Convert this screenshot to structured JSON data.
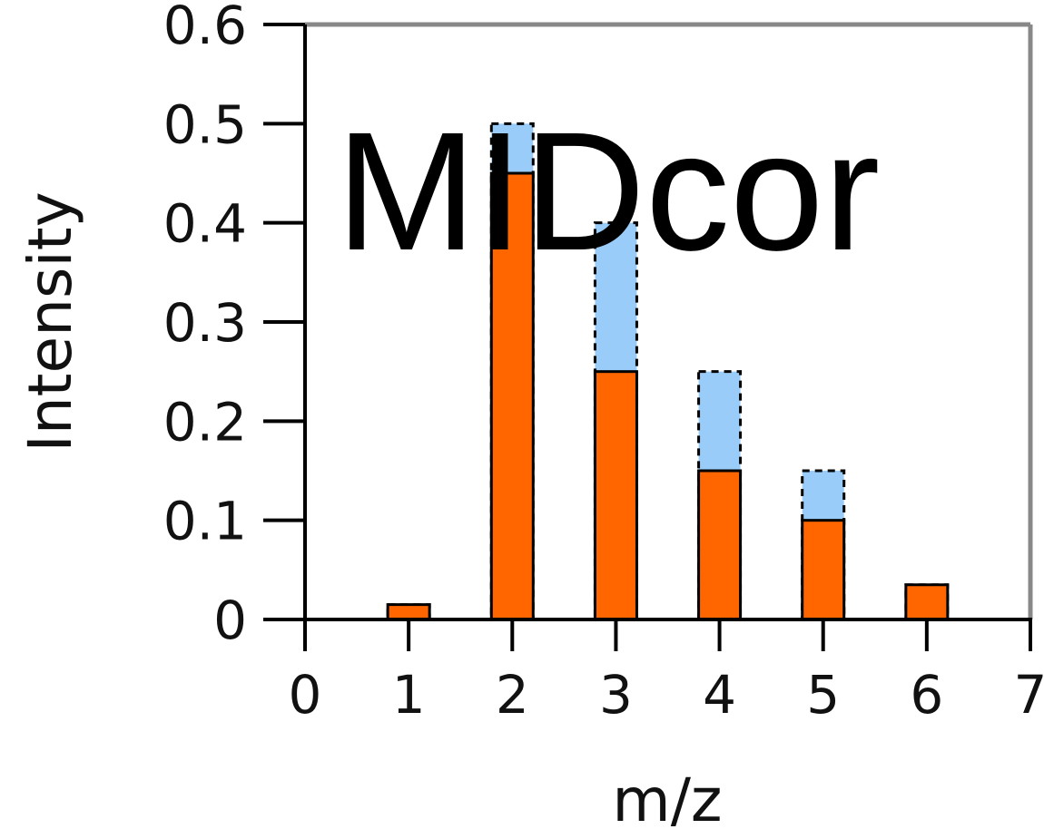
{
  "chart_data": {
    "type": "bar",
    "title": "MIDcor",
    "xlabel": "m/z",
    "ylabel": "Intensity",
    "xlim": [
      0,
      7
    ],
    "ylim": [
      0,
      0.6
    ],
    "x_ticks": [
      "0",
      "1",
      "2",
      "3",
      "4",
      "5",
      "6",
      "7"
    ],
    "y_ticks": [
      "0",
      "0.1",
      "0.2",
      "0.3",
      "0.4",
      "0.5",
      "0.6"
    ],
    "x": [
      1,
      2,
      3,
      4,
      5,
      6
    ],
    "series": [
      {
        "style": "dashed-outline",
        "color": "#99ccf8",
        "values": [
          0.015,
          0.5,
          0.4,
          0.25,
          0.15,
          0.035
        ]
      },
      {
        "style": "solid",
        "color": "#ff6600",
        "values": [
          0.015,
          0.45,
          0.25,
          0.15,
          0.1,
          0.035
        ]
      }
    ],
    "grid": false,
    "legend": "none"
  }
}
